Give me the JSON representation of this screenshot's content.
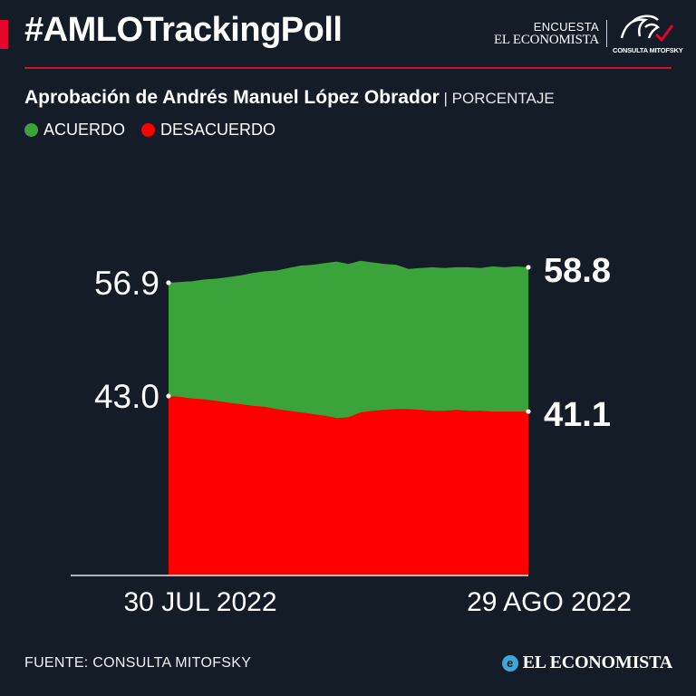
{
  "header": {
    "hashtag": "#AMLOTrackingPoll",
    "brand_small": "ENCUESTA",
    "brand_name": "EL ECONOMISTA",
    "partner_label": "CONSULTA MITOFSKY"
  },
  "subtitle": {
    "main": "Aprobación de Andrés Manuel López Obrador",
    "separator": " | ",
    "unit": "PORCENTAJE"
  },
  "legend": [
    {
      "label": "ACUERDO",
      "color": "#3aa33a"
    },
    {
      "label": "DESACUERDO",
      "color": "#ff0000"
    }
  ],
  "chart_data": {
    "type": "area",
    "title": "Aprobación de Andrés Manuel López Obrador",
    "unit": "PORCENTAJE",
    "x_start": "30 JUL 2022",
    "x_end": "29 AGO 2022",
    "series": [
      {
        "name": "ACUERDO",
        "color": "#3aa33a",
        "values": [
          56.9,
          57.0,
          57.1,
          57.3,
          57.4,
          57.6,
          57.8,
          58.1,
          58.3,
          58.4,
          58.7,
          59.0,
          59.1,
          59.3,
          59.5,
          59.2,
          59.6,
          59.4,
          59.2,
          59.1,
          58.6,
          58.7,
          58.8,
          58.7,
          58.8,
          58.8,
          58.7,
          58.9,
          58.8,
          58.9,
          58.8
        ]
      },
      {
        "name": "DESACUERDO",
        "color": "#ff0000",
        "values": [
          43.0,
          42.9,
          42.7,
          42.6,
          42.4,
          42.2,
          42.0,
          41.8,
          41.7,
          41.4,
          41.2,
          41.0,
          40.8,
          40.6,
          40.3,
          40.4,
          41.0,
          41.2,
          41.3,
          41.4,
          41.4,
          41.3,
          41.2,
          41.2,
          41.3,
          41.2,
          41.2,
          41.1,
          41.1,
          41.1,
          41.1
        ]
      }
    ],
    "start_labels": [
      "56.9",
      "43.0"
    ],
    "end_labels": [
      "58.8",
      "41.1"
    ],
    "ylim": [
      20,
      62
    ]
  },
  "footer": {
    "source": "FUENTE: CONSULTA MITOFSKY",
    "brand": "EL ECONOMISTA",
    "brand_logo_letter": "e"
  }
}
